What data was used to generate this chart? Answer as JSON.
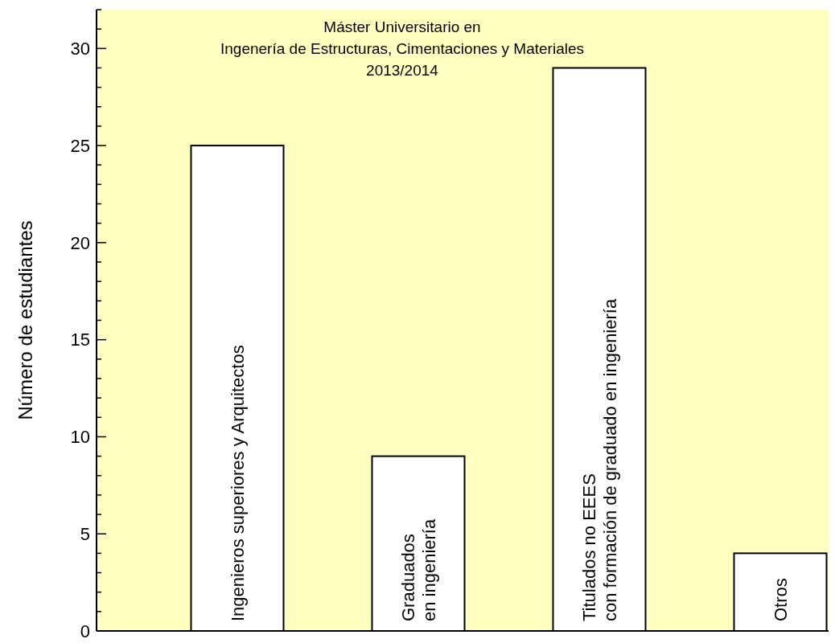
{
  "chart_data": {
    "type": "bar",
    "title": "Máster Universitario en\nIngenería de Estructuras, Cimentaciones y Materiales\n2013/2014",
    "ylabel": "Número de estudiantes",
    "categories": [
      "Ingenieros superiores y Arquitectos",
      "Graduados\nen ingeniería",
      "Titulados no EEES\ncon formación de graduado en ingeniería",
      "Otros"
    ],
    "values": [
      25,
      9,
      29,
      4
    ],
    "color": "#ffffff",
    "ylim": [
      0,
      32
    ],
    "yticks": [
      0,
      {
        "value": 1,
        "label": null
      },
      {
        "value": 2,
        "label": null
      },
      {
        "value": 3,
        "label": null
      },
      {
        "value": 4,
        "label": null
      },
      5,
      {
        "value": 6,
        "label": null
      },
      {
        "value": 7,
        "label": null
      },
      {
        "value": 8,
        "label": null
      },
      {
        "value": 9,
        "label": null
      },
      10,
      {
        "value": 11,
        "label": null
      },
      {
        "value": 12,
        "label": null
      },
      {
        "value": 13,
        "label": null
      },
      {
        "value": 14,
        "label": null
      },
      15,
      {
        "value": 16,
        "label": null
      },
      {
        "value": 17,
        "label": null
      },
      {
        "value": 18,
        "label": null
      },
      {
        "value": 19,
        "label": null
      },
      20,
      {
        "value": 21,
        "label": null
      },
      {
        "value": 22,
        "label": null
      },
      {
        "value": 23,
        "label": null
      },
      {
        "value": 24,
        "label": null
      },
      25,
      {
        "value": 26,
        "label": null
      },
      {
        "value": 27,
        "label": null
      },
      {
        "value": 28,
        "label": null
      },
      {
        "value": 29,
        "label": null
      },
      30,
      {
        "value": 31,
        "label": null
      },
      {
        "value": 32,
        "label": null
      }
    ],
    "grid": false
  }
}
